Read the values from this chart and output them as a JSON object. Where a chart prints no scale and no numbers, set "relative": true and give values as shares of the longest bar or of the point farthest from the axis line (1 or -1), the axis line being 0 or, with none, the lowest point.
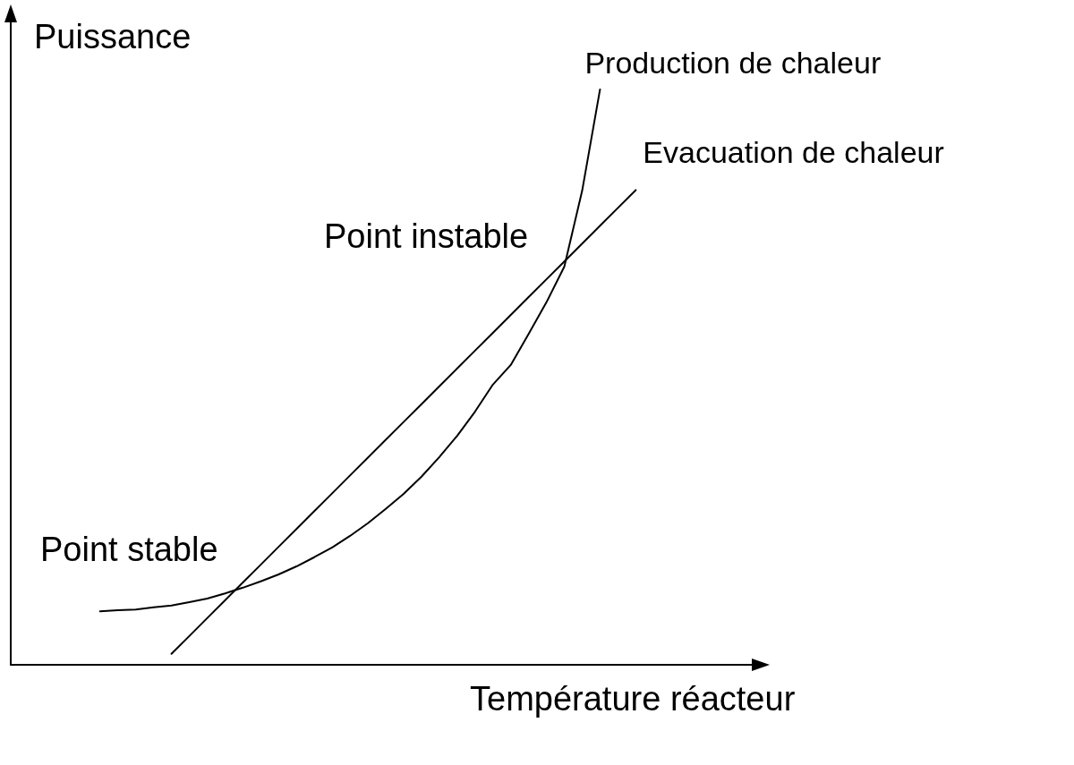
{
  "chart_data": {
    "type": "line",
    "relative": true,
    "xlabel": "Température réacteur",
    "ylabel": "Puissance",
    "marker": "none",
    "grid": false,
    "categories": [
      null,
      null,
      null,
      null,
      null,
      null,
      null,
      null,
      null,
      null,
      null,
      null,
      null,
      null,
      null,
      null,
      null,
      null,
      null,
      null,
      null,
      null,
      null,
      null,
      null,
      null,
      null,
      null,
      null,
      null,
      null,
      null,
      null,
      null,
      null,
      null,
      null,
      null,
      null,
      null,
      null,
      null,
      null
    ],
    "series": [
      {
        "name": "Production de chaleur",
        "color": "#000000",
        "values": [
          null,
          null,
          null,
          null,
          null,
          0.093,
          0.095,
          0.096,
          0.1,
          0.103,
          0.109,
          0.115,
          0.124,
          0.134,
          0.145,
          0.157,
          0.171,
          0.187,
          0.204,
          0.224,
          0.246,
          0.271,
          0.297,
          0.327,
          0.361,
          0.398,
          0.44,
          0.487,
          0.521,
          0.575,
          0.63,
          0.692,
          0.824,
          1,
          null,
          null,
          null,
          null,
          null,
          null,
          null,
          null,
          null
        ]
      },
      {
        "name": "Evacuation de chaleur",
        "color": "#000000",
        "values": [
          null,
          null,
          null,
          null,
          null,
          null,
          null,
          null,
          null,
          0.019,
          0.05,
          0.081,
          0.112,
          0.143,
          0.174,
          0.205,
          0.236,
          0.267,
          0.298,
          0.329,
          0.36,
          0.391,
          0.422,
          0.453,
          0.484,
          0.515,
          0.546,
          0.577,
          0.608,
          0.639,
          0.67,
          0.701,
          0.732,
          0.763,
          0.794,
          0.825,
          null,
          null,
          null,
          null,
          null,
          null,
          null
        ]
      }
    ],
    "annotations": [
      "Point stable",
      "Point instable"
    ]
  }
}
